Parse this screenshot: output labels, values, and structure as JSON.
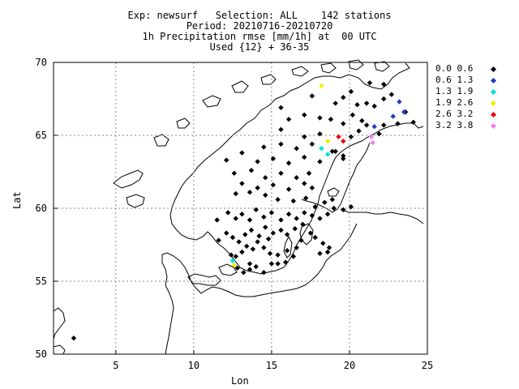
{
  "header": {
    "line1": "Exp: newsurf   Selection: ALL    142 stations",
    "line2": "Period: 20210716-20210720",
    "line3": "1h Precipitation rmse [mm/1h] at  00 UTC",
    "line4": "Used {12} + 36-35"
  },
  "axes": {
    "xlabel": "Lon",
    "ylabel": "Lat",
    "xlim": [
      1,
      25
    ],
    "ylim": [
      50,
      70
    ],
    "xticks": [
      "5",
      "10",
      "15",
      "20",
      "25"
    ],
    "yticks": [
      "50",
      "55",
      "60",
      "65",
      "70"
    ],
    "grid": true
  },
  "legend": [
    {
      "label": "0.0 0.6",
      "color": "#000000"
    },
    {
      "label": "0.6 1.3",
      "color": "#1f3fbf"
    },
    {
      "label": "1.3 1.9",
      "color": "#00e0e0"
    },
    {
      "label": "1.9 2.6",
      "color": "#f0f000"
    },
    {
      "label": "2.6 3.2",
      "color": "#ee0000"
    },
    {
      "label": "3.2 3.8",
      "color": "#ee82ee"
    }
  ],
  "chart_data": {
    "type": "scatter",
    "xlabel": "Lon",
    "ylabel": "Lat",
    "xlim": [
      1,
      25
    ],
    "ylim": [
      50,
      70
    ],
    "points": [
      [
        2.3,
        51.1,
        0
      ],
      [
        12.5,
        56.4,
        2
      ],
      [
        12.6,
        56.1,
        3
      ],
      [
        12.8,
        55.9,
        0
      ],
      [
        13.2,
        55.6,
        0
      ],
      [
        13.6,
        55.8,
        0
      ],
      [
        14.0,
        56.0,
        0
      ],
      [
        14.5,
        55.6,
        0
      ],
      [
        15.0,
        56.2,
        0
      ],
      [
        15.4,
        56.2,
        0
      ],
      [
        15.9,
        56.3,
        0
      ],
      [
        12.4,
        56.8,
        0
      ],
      [
        12.7,
        56.7,
        0
      ],
      [
        13.1,
        57.0,
        0
      ],
      [
        13.4,
        57.4,
        0
      ],
      [
        13.8,
        57.2,
        0
      ],
      [
        14.1,
        57.7,
        0
      ],
      [
        14.5,
        57.3,
        0
      ],
      [
        14.9,
        56.9,
        0
      ],
      [
        15.4,
        56.8,
        0
      ],
      [
        16.0,
        57.1,
        0
      ],
      [
        16.4,
        56.7,
        0
      ],
      [
        16.6,
        57.3,
        0
      ],
      [
        11.6,
        57.8,
        0
      ],
      [
        12.1,
        58.3,
        0
      ],
      [
        12.5,
        58.0,
        0
      ],
      [
        12.9,
        57.7,
        0
      ],
      [
        13.3,
        58.2,
        0
      ],
      [
        13.7,
        58.5,
        0
      ],
      [
        14.2,
        58.1,
        0
      ],
      [
        14.6,
        58.7,
        0
      ],
      [
        15.1,
        58.3,
        0
      ],
      [
        15.6,
        58.5,
        0
      ],
      [
        16.0,
        58.2,
        0
      ],
      [
        16.5,
        58.6,
        0
      ],
      [
        17.0,
        58.9,
        0
      ],
      [
        17.5,
        58.3,
        0
      ],
      [
        17.8,
        58.0,
        0
      ],
      [
        18.3,
        57.6,
        0
      ],
      [
        18.7,
        57.3,
        0
      ],
      [
        18.1,
        56.9,
        0
      ],
      [
        18.6,
        57.0,
        0
      ],
      [
        11.5,
        59.2,
        0
      ],
      [
        12.2,
        59.7,
        0
      ],
      [
        12.7,
        59.3,
        0
      ],
      [
        13.1,
        59.6,
        0
      ],
      [
        13.6,
        59.2,
        0
      ],
      [
        14.0,
        59.9,
        0
      ],
      [
        14.5,
        59.4,
        0
      ],
      [
        15.0,
        59.7,
        0
      ],
      [
        15.6,
        59.2,
        0
      ],
      [
        16.1,
        59.6,
        0
      ],
      [
        16.6,
        59.3,
        0
      ],
      [
        17.1,
        59.7,
        0
      ],
      [
        17.6,
        59.5,
        0
      ],
      [
        18.1,
        59.3,
        0
      ],
      [
        18.6,
        59.6,
        0
      ],
      [
        17.8,
        60.1,
        0
      ],
      [
        18.4,
        60.4,
        0
      ],
      [
        19.0,
        60.0,
        0
      ],
      [
        19.6,
        59.9,
        0
      ],
      [
        20.1,
        60.1,
        0
      ],
      [
        18.9,
        60.6,
        0
      ],
      [
        17.2,
        60.7,
        0
      ],
      [
        16.4,
        60.5,
        0
      ],
      [
        15.4,
        60.6,
        0
      ],
      [
        14.6,
        60.9,
        0
      ],
      [
        13.6,
        61.1,
        0
      ],
      [
        12.7,
        61.0,
        0
      ],
      [
        13.1,
        61.7,
        0
      ],
      [
        14.1,
        61.4,
        0
      ],
      [
        15.1,
        61.6,
        0
      ],
      [
        16.1,
        61.3,
        0
      ],
      [
        17.1,
        61.7,
        0
      ],
      [
        17.6,
        61.4,
        0
      ],
      [
        14.6,
        62.1,
        0
      ],
      [
        15.6,
        62.4,
        0
      ],
      [
        16.6,
        62.1,
        0
      ],
      [
        17.4,
        62.4,
        0
      ],
      [
        13.7,
        62.6,
        0
      ],
      [
        12.6,
        62.4,
        0
      ],
      [
        14.1,
        63.2,
        0
      ],
      [
        15.1,
        63.4,
        0
      ],
      [
        16.1,
        63.1,
        0
      ],
      [
        17.1,
        63.5,
        0
      ],
      [
        18.1,
        63.2,
        0
      ],
      [
        18.6,
        63.7,
        2
      ],
      [
        19.1,
        63.9,
        0
      ],
      [
        19.6,
        63.6,
        0
      ],
      [
        12.1,
        63.3,
        0
      ],
      [
        13.1,
        63.8,
        0
      ],
      [
        14.5,
        64.2,
        0
      ],
      [
        15.6,
        64.4,
        0
      ],
      [
        16.6,
        64.1,
        0
      ],
      [
        17.6,
        64.4,
        0
      ],
      [
        18.2,
        64.1,
        2
      ],
      [
        18.6,
        64.6,
        3
      ],
      [
        19.3,
        64.9,
        4
      ],
      [
        19.6,
        64.6,
        4
      ],
      [
        20.1,
        64.9,
        0
      ],
      [
        20.6,
        65.3,
        0
      ],
      [
        17.1,
        64.9,
        0
      ],
      [
        18.1,
        65.1,
        0
      ],
      [
        15.6,
        65.4,
        0
      ],
      [
        16.1,
        66.1,
        0
      ],
      [
        17.1,
        66.4,
        0
      ],
      [
        18.1,
        66.2,
        0
      ],
      [
        18.8,
        66.1,
        0
      ],
      [
        19.6,
        65.8,
        0
      ],
      [
        20.2,
        66.4,
        0
      ],
      [
        20.8,
        66.0,
        0
      ],
      [
        21.1,
        65.7,
        0
      ],
      [
        21.6,
        65.6,
        1
      ],
      [
        21.4,
        64.9,
        5
      ],
      [
        21.5,
        64.5,
        5
      ],
      [
        21.9,
        65.1,
        0
      ],
      [
        22.2,
        65.7,
        0
      ],
      [
        22.8,
        66.3,
        1
      ],
      [
        23.1,
        65.8,
        0
      ],
      [
        23.6,
        66.6,
        0
      ],
      [
        24.1,
        65.9,
        0
      ],
      [
        20.5,
        67.1,
        0
      ],
      [
        21.1,
        67.2,
        0
      ],
      [
        21.6,
        67.0,
        0
      ],
      [
        22.2,
        67.5,
        0
      ],
      [
        22.7,
        67.8,
        0
      ],
      [
        23.2,
        67.3,
        1
      ],
      [
        23.5,
        66.6,
        1
      ],
      [
        19.6,
        67.6,
        0
      ],
      [
        20.1,
        68.0,
        0
      ],
      [
        18.2,
        68.4,
        3
      ],
      [
        21.3,
        68.6,
        0
      ],
      [
        22.2,
        68.5,
        0
      ],
      [
        19.1,
        67.2,
        0
      ],
      [
        17.6,
        67.7,
        0
      ],
      [
        15.6,
        66.9,
        0
      ],
      [
        19.6,
        63.4,
        0
      ],
      [
        18.9,
        63.9,
        0
      ],
      [
        13.6,
        56.2,
        0
      ],
      [
        16.9,
        57.8,
        0
      ],
      [
        14.8,
        57.9,
        0
      ]
    ]
  }
}
